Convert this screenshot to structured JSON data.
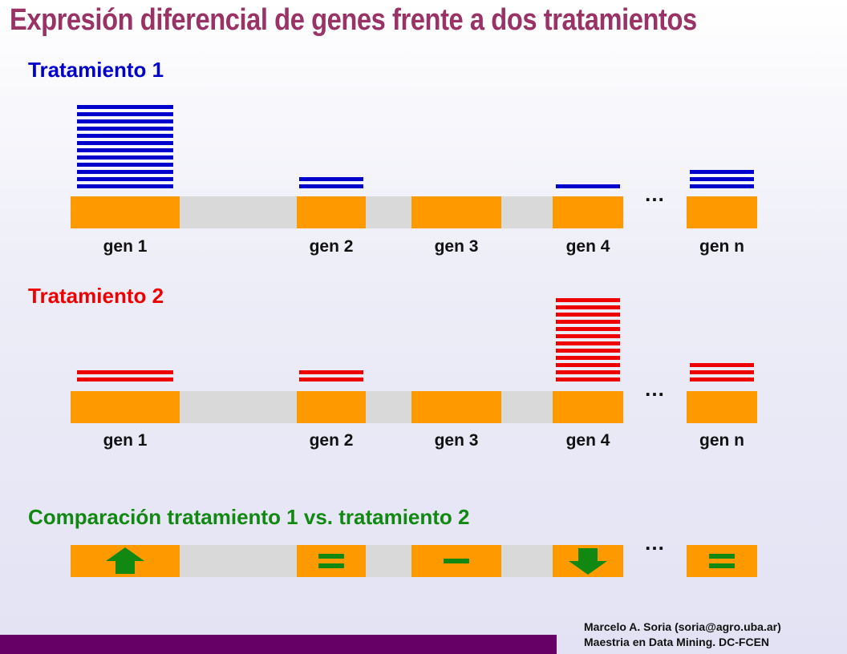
{
  "title": "Expresión diferencial de genes frente a dos tratamientos",
  "colors": {
    "title": "#993366",
    "treatment1": "#0000cc",
    "treatment2": "#ee0000",
    "comparison": "#118811",
    "gene": "#ff9900",
    "gap": "#d9d9d9",
    "footer_bar": "#660066"
  },
  "ellipsis": "…",
  "genes": [
    "gen 1",
    "gen 2",
    "gen 3",
    "gen 4",
    "gen n"
  ],
  "treatment1": {
    "label": "Tratamiento 1",
    "expression_lines": [
      12,
      2,
      0,
      1,
      3
    ]
  },
  "treatment2": {
    "label": "Tratamiento 2",
    "expression_lines": [
      2,
      2,
      0,
      12,
      3
    ]
  },
  "comparison": {
    "label": "Comparación tratamiento 1 vs. tratamiento 2",
    "symbols": [
      "arrow-up",
      "equal",
      "minus",
      "arrow-down",
      "equal"
    ]
  },
  "footer": {
    "line1": "Marcelo A. Soria (soria@agro.uba.ar)",
    "line2": "Maestria en Data Mining. DC-FCEN"
  }
}
